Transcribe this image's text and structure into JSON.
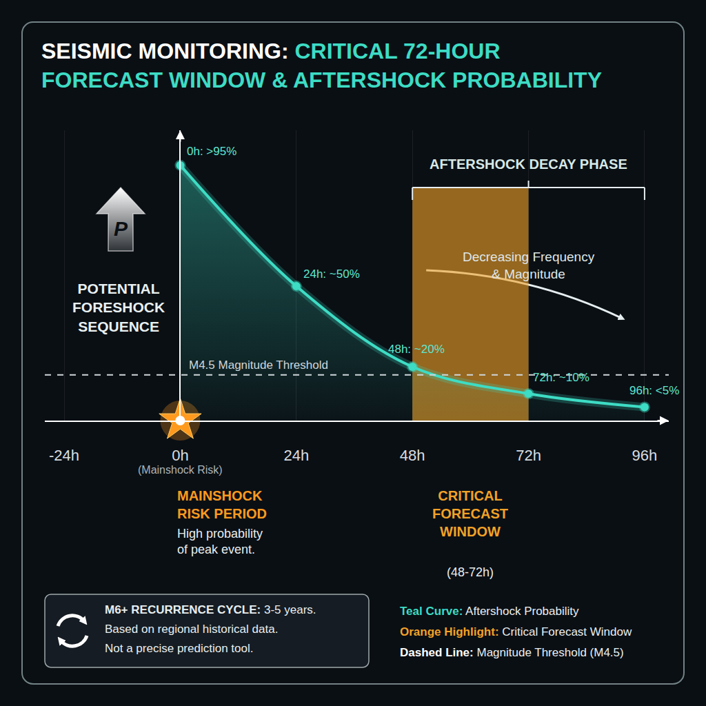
{
  "chart_data": {
    "type": "line",
    "title": "SEISMIC MONITORING: CRITICAL 72-HOUR FORECAST WINDOW & AFTERSHOCK PROBABILITY",
    "x": [
      0,
      24,
      48,
      72,
      96
    ],
    "values": [
      95,
      50,
      20,
      10,
      5
    ],
    "value_labels": [
      "0h: >95%",
      "24h: ~50%",
      "48h: ~20%",
      "72h: ~10%",
      "96h: <5%"
    ],
    "data_labels": true,
    "color": "#3ddcc4",
    "marker": "circle",
    "line_style": "solid",
    "xlim": [
      -28,
      101
    ],
    "xticks": [
      {
        "value": -24,
        "label": "-24h"
      },
      {
        "value": 0,
        "label": "0h"
      },
      {
        "value": 24,
        "label": "24h"
      },
      {
        "value": 48,
        "label": "48h"
      },
      {
        "value": 72,
        "label": "72h"
      },
      {
        "value": 96,
        "label": "96h"
      }
    ],
    "ylim": [
      0,
      108
    ],
    "tick_labels": "x",
    "grid": true,
    "reference_line": {
      "label": "M4.5 Magnitude Threshold",
      "value": 17,
      "line_style": "dashed",
      "color": "#cfd6da"
    },
    "highlight": {
      "x": [
        48,
        72
      ],
      "color": "#f2a227",
      "label": "CRITICAL FORECAST WINDOW",
      "text": "(48-72h)"
    },
    "phase": {
      "label": "AFTERSHOCK DECAY PHASE",
      "x": [
        48,
        96
      ],
      "text": "Decreasing Frequency & Magnitude"
    },
    "mainshock": {
      "x": 0,
      "label": "(Mainshock Risk)",
      "marker": "star",
      "color": "#ff9a1f",
      "period": "MAINSHOCK RISK PERIOD",
      "text": "High probability of peak event."
    },
    "foreshock": {
      "label": "POTENTIAL FORESHOCK SEQUENCE",
      "icon": "P"
    },
    "note": {
      "heading": "M6+ RECURRENCE CYCLE:",
      "value": "3-5 years.",
      "lines": [
        "Based on regional historical data.",
        "Not a precise prediction tool."
      ]
    },
    "key": [
      {
        "label": "Teal Curve:",
        "text": "Aftershock Probability",
        "color": "#3ddcc4"
      },
      {
        "label": "Orange Highlight:",
        "text": "Critical Forecast Window",
        "color": "#f2a227"
      },
      {
        "label": "Dashed Line:",
        "text": "Magnitude Threshold (M4.5)",
        "color": "#ffffff"
      }
    ]
  }
}
